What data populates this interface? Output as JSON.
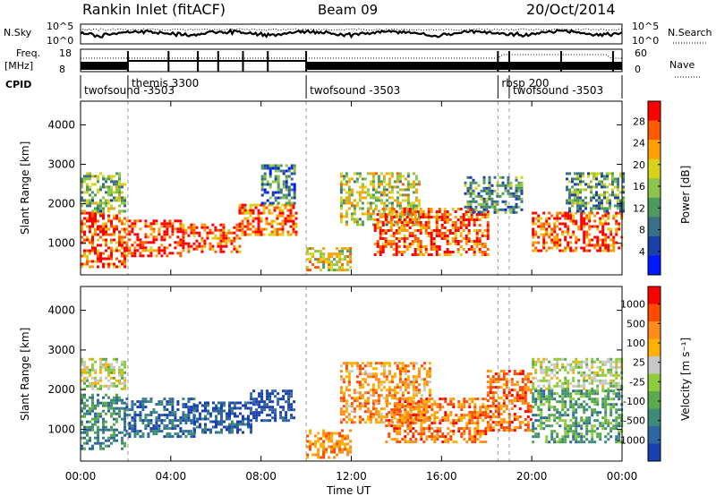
{
  "header": {
    "station": "Rankin Inlet (fitACF)",
    "beam": "Beam 09",
    "date": "20/Oct/2014"
  },
  "summary": {
    "left_nsky": "N.Sky",
    "right_nsearch": "N.Search",
    "left_freq_line1": "Freq.",
    "left_freq_line2": "[MHz]",
    "right_nave": "Nave",
    "cpid_label": "CPID",
    "noise_ticks": [
      "10^5",
      "10^0"
    ],
    "freq_ticks": [
      "18",
      "8"
    ],
    "nave_ticks": [
      "60",
      "0"
    ]
  },
  "cpid_segments": [
    {
      "label": "twofsound -3503",
      "start_hour": 0.0,
      "end_hour": 2.1
    },
    {
      "label": "themis 3300",
      "start_hour": 2.1,
      "end_hour": 10.0
    },
    {
      "label": "twofsound -3503",
      "start_hour": 10.0,
      "end_hour": 18.5
    },
    {
      "label": "rbsp 200",
      "start_hour": 18.5,
      "end_hour": 19.0
    },
    {
      "label": "twofsound -3503",
      "start_hour": 19.0,
      "end_hour": 24.0
    }
  ],
  "colors": {
    "power": [
      "#0018ff",
      "#1a3fa8",
      "#3a6f8a",
      "#4e9a5e",
      "#8fc44a",
      "#d8d21a",
      "#ffa000",
      "#ff5a00",
      "#ff0000"
    ],
    "velocity": [
      "#1a3fb0",
      "#2e66a0",
      "#3d8a78",
      "#5aaa4a",
      "#8fcc3c",
      "#c8c8c8",
      "#ffb000",
      "#ff8c1a",
      "#ff4a00",
      "#ff0000"
    ]
  },
  "chart_data": [
    {
      "type": "heatmap",
      "name": "power-panel",
      "x_unit": "hours UT",
      "xlim": [
        0,
        24
      ],
      "ylabel": "Slant Range [km]",
      "ylim": [
        200,
        4600
      ],
      "yticks": [
        "1000",
        "2000",
        "3000",
        "4000"
      ],
      "colorbar_label": "Power [dB]",
      "colorbar_ticks": [
        "28",
        "24",
        "20",
        "16",
        "12",
        "8",
        "4"
      ],
      "echo_regions": [
        {
          "x0": 0.0,
          "x1": 2.0,
          "y0": 400,
          "y1": 1800,
          "level": 0.85
        },
        {
          "x0": 0.0,
          "x1": 2.0,
          "y0": 1800,
          "y1": 2800,
          "level": 0.45
        },
        {
          "x0": 2.0,
          "x1": 4.5,
          "y0": 700,
          "y1": 1600,
          "level": 0.9
        },
        {
          "x0": 4.5,
          "x1": 7.0,
          "y0": 800,
          "y1": 1500,
          "level": 0.85
        },
        {
          "x0": 7.0,
          "x1": 9.5,
          "y0": 1200,
          "y1": 2000,
          "level": 0.8
        },
        {
          "x0": 8.0,
          "x1": 9.5,
          "y0": 2000,
          "y1": 3000,
          "level": 0.3
        },
        {
          "x0": 10.0,
          "x1": 12.0,
          "y0": 300,
          "y1": 900,
          "level": 0.6
        },
        {
          "x0": 11.5,
          "x1": 15.0,
          "y0": 1500,
          "y1": 2800,
          "level": 0.55
        },
        {
          "x0": 13.0,
          "x1": 18.0,
          "y0": 700,
          "y1": 1900,
          "level": 0.85
        },
        {
          "x0": 17.0,
          "x1": 19.5,
          "y0": 1800,
          "y1": 2700,
          "level": 0.35
        },
        {
          "x0": 20.0,
          "x1": 24.0,
          "y0": 800,
          "y1": 1800,
          "level": 0.85
        },
        {
          "x0": 21.5,
          "x1": 24.0,
          "y0": 1800,
          "y1": 2800,
          "level": 0.4
        }
      ]
    },
    {
      "type": "heatmap",
      "name": "velocity-panel",
      "x_unit": "hours UT",
      "xlim": [
        0,
        24
      ],
      "xticks": [
        "00:00",
        "04:00",
        "08:00",
        "12:00",
        "16:00",
        "20:00",
        "00:00"
      ],
      "xlabel": "Time UT",
      "ylabel": "Slant Range [km]",
      "ylim": [
        200,
        4600
      ],
      "yticks": [
        "1000",
        "2000",
        "3000",
        "4000"
      ],
      "colorbar_label": "Velocity [m s⁻¹]",
      "colorbar_ticks": [
        "1000",
        "500",
        "100",
        "25",
        "-25",
        "-100",
        "-500",
        "-1000"
      ],
      "echo_regions": [
        {
          "x0": 0.0,
          "x1": 2.0,
          "y0": 2000,
          "y1": 2800,
          "level": 0.5
        },
        {
          "x0": 0.0,
          "x1": 2.0,
          "y0": 500,
          "y1": 1900,
          "level": 0.25
        },
        {
          "x0": 2.0,
          "x1": 5.0,
          "y0": 800,
          "y1": 1800,
          "level": 0.15
        },
        {
          "x0": 5.0,
          "x1": 7.5,
          "y0": 900,
          "y1": 1700,
          "level": 0.1
        },
        {
          "x0": 7.5,
          "x1": 9.5,
          "y0": 1200,
          "y1": 2000,
          "level": 0.05
        },
        {
          "x0": 10.0,
          "x1": 12.0,
          "y0": 300,
          "y1": 1000,
          "level": 0.75
        },
        {
          "x0": 11.5,
          "x1": 15.5,
          "y0": 1200,
          "y1": 2700,
          "level": 0.72
        },
        {
          "x0": 13.5,
          "x1": 18.0,
          "y0": 700,
          "y1": 1800,
          "level": 0.78
        },
        {
          "x0": 18.0,
          "x1": 20.0,
          "y0": 1000,
          "y1": 2500,
          "level": 0.8
        },
        {
          "x0": 20.0,
          "x1": 24.0,
          "y0": 2000,
          "y1": 2800,
          "level": 0.5
        },
        {
          "x0": 20.0,
          "x1": 24.0,
          "y0": 700,
          "y1": 2000,
          "level": 0.3
        }
      ]
    }
  ]
}
